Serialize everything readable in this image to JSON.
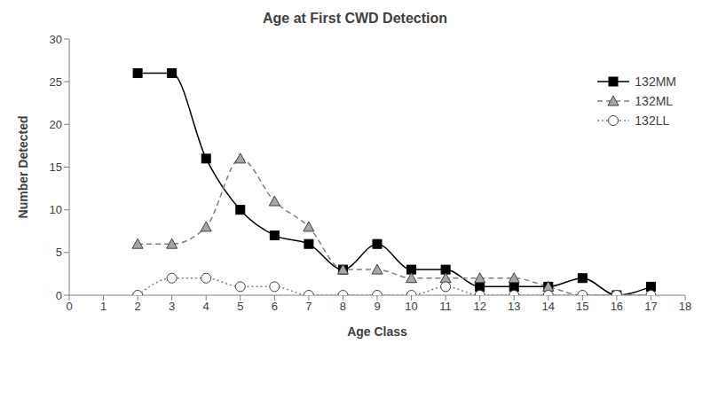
{
  "chart_data": {
    "type": "line",
    "title": "Age at First CWD Detection",
    "x_label": "Age Class",
    "y_label": "Number Detected",
    "x": [
      2,
      3,
      4,
      5,
      6,
      7,
      8,
      9,
      10,
      11,
      12,
      13,
      14,
      15,
      16,
      17
    ],
    "series": [
      {
        "name": "132MM",
        "color": "#000000",
        "marker": "square",
        "line_style": "solid",
        "values": [
          26,
          26,
          16,
          10,
          7,
          6,
          3,
          6,
          3,
          3,
          1,
          1,
          1,
          2,
          0,
          1
        ]
      },
      {
        "name": "132ML",
        "color": "#808080",
        "marker": "triangle",
        "line_style": "dashed",
        "values": [
          6,
          6,
          8,
          16,
          11,
          8,
          3,
          3,
          2,
          2,
          2,
          2,
          1,
          0,
          0,
          0
        ]
      },
      {
        "name": "132LL",
        "color": "#808080",
        "marker": "circle",
        "line_style": "dotted",
        "values": [
          0,
          2,
          2,
          1,
          1,
          0,
          0,
          0,
          0,
          1,
          0,
          0,
          0,
          0,
          0,
          0
        ]
      }
    ],
    "xlim": [
      0,
      18
    ],
    "xticks": [
      0,
      1,
      2,
      3,
      4,
      5,
      6,
      7,
      8,
      9,
      10,
      11,
      12,
      13,
      14,
      15,
      16,
      17,
      18
    ],
    "ylim": [
      0,
      30
    ],
    "yticks": [
      0,
      5,
      10,
      15,
      20,
      25,
      30
    ],
    "grid": false,
    "legend": "upper right"
  }
}
